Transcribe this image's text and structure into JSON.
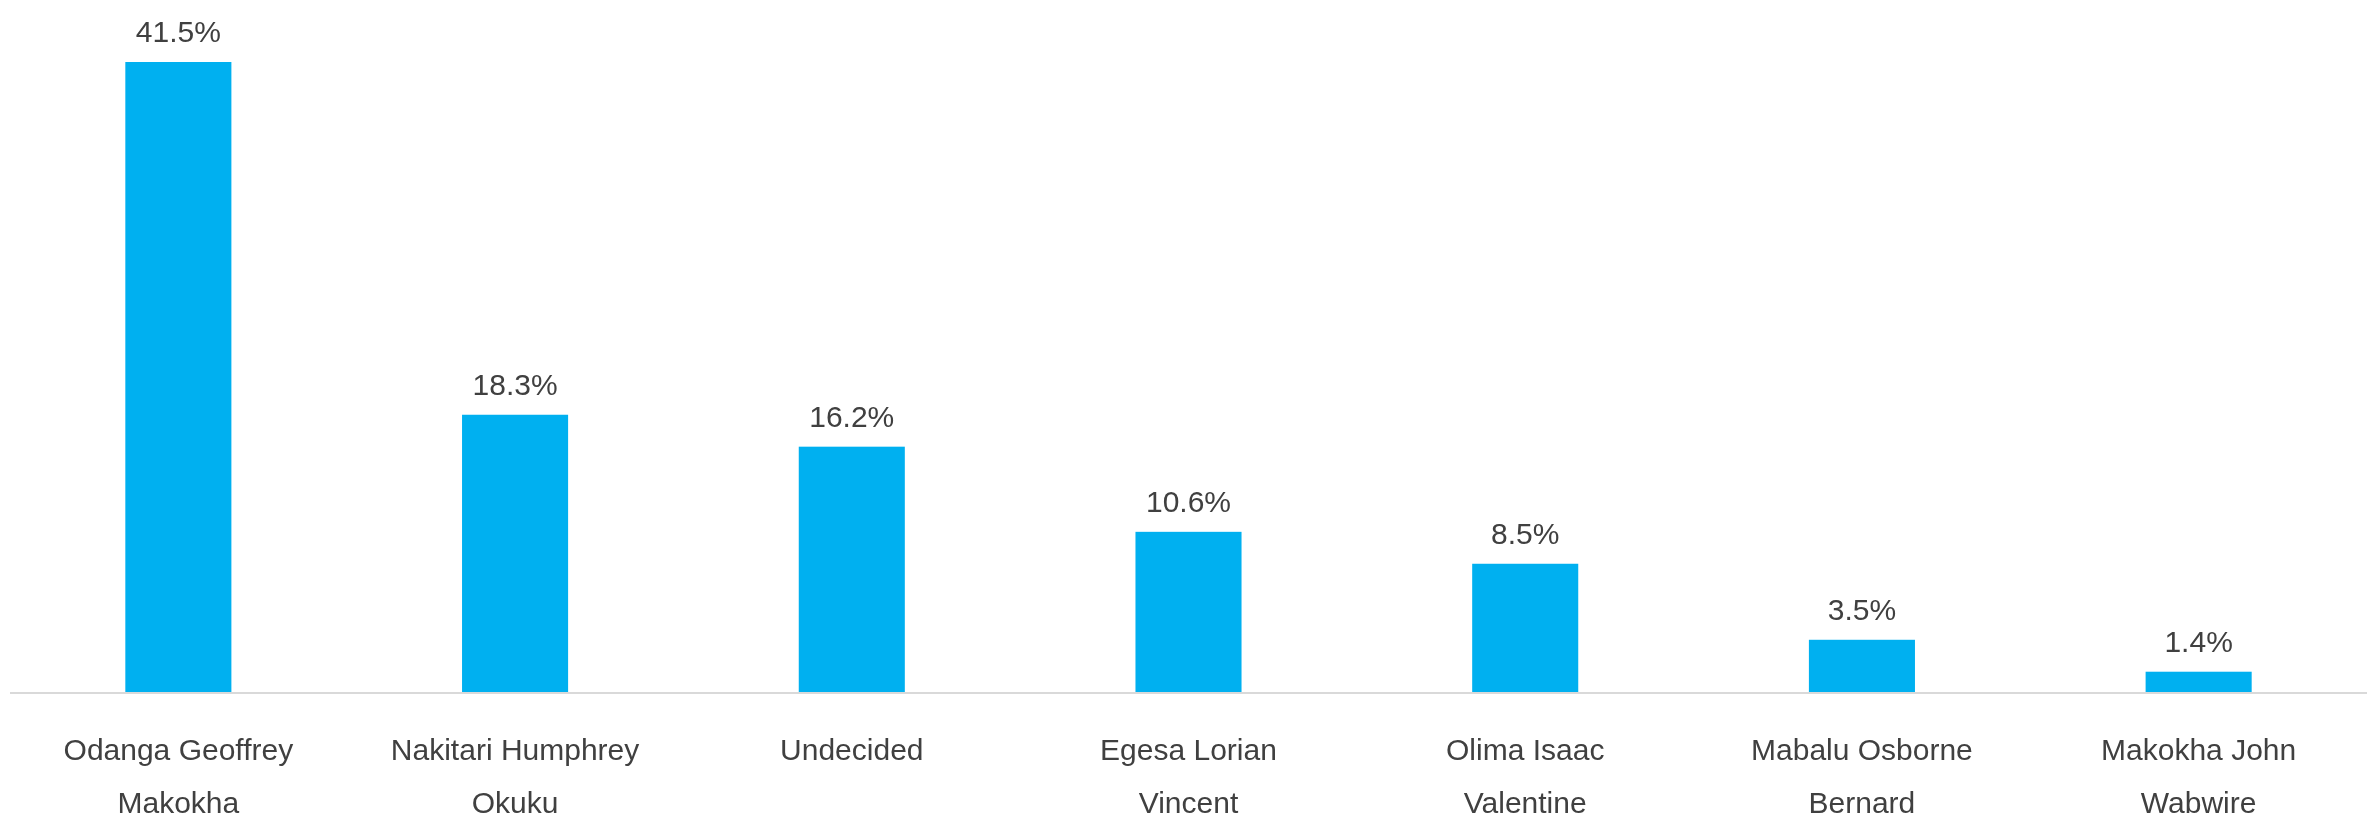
{
  "chart_data": {
    "type": "bar",
    "categories": [
      "Odanga Geoffrey Makokha",
      "Nakitari Humphrey Okuku",
      "Undecided",
      "Egesa Lorian Vincent",
      "Olima Isaac Valentine",
      "Mabalu Osborne Bernard",
      "Makokha John Wabwire"
    ],
    "values": [
      41.5,
      18.3,
      16.2,
      10.6,
      8.5,
      3.5,
      1.4
    ],
    "value_labels": [
      "41.5%",
      "18.3%",
      "16.2%",
      "10.6%",
      "8.5%",
      "3.5%",
      "1.4%"
    ],
    "color": "#00b0f0"
  }
}
